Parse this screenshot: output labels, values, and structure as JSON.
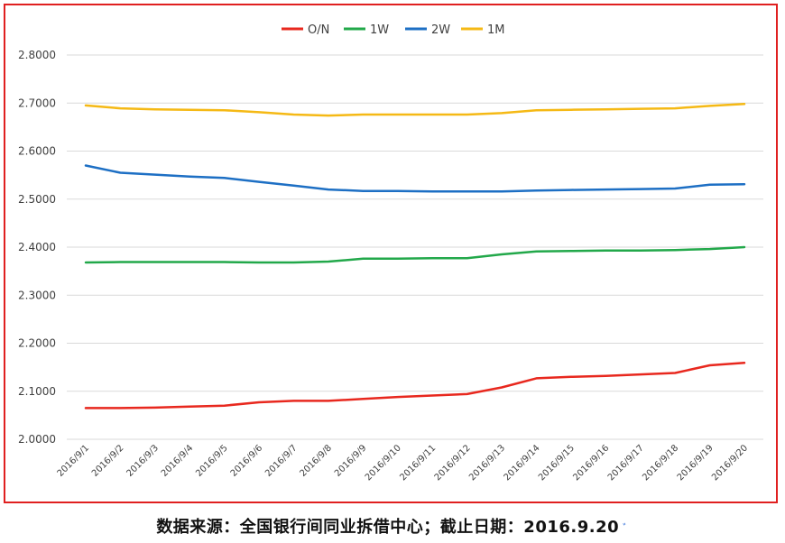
{
  "chart_data": {
    "type": "line",
    "title": "",
    "xlabel": "",
    "ylabel": "",
    "ylim": [
      2.0,
      2.8
    ],
    "yticks": [
      "2.0000",
      "2.1000",
      "2.2000",
      "2.3000",
      "2.4000",
      "2.5000",
      "2.6000",
      "2.7000",
      "2.8000"
    ],
    "grid": true,
    "legend_position": "top-center",
    "categories": [
      "2016/9/1",
      "2016/9/2",
      "2016/9/3",
      "2016/9/4",
      "2016/9/5",
      "2016/9/6",
      "2016/9/7",
      "2016/9/8",
      "2016/9/9",
      "2016/9/10",
      "2016/9/11",
      "2016/9/12",
      "2016/9/13",
      "2016/9/14",
      "2016/9/15",
      "2016/9/16",
      "2016/9/17",
      "2016/9/18",
      "2016/9/19",
      "2016/9/20"
    ],
    "series": [
      {
        "name": "O/N",
        "color": "#e8281e",
        "values": [
          2.065,
          2.065,
          2.066,
          2.068,
          2.07,
          2.077,
          2.08,
          2.08,
          2.084,
          2.088,
          2.091,
          2.094,
          2.108,
          2.127,
          2.13,
          2.132,
          2.135,
          2.138,
          2.154,
          2.159
        ]
      },
      {
        "name": "1W",
        "color": "#22a84a",
        "values": [
          2.368,
          2.369,
          2.369,
          2.369,
          2.369,
          2.368,
          2.368,
          2.37,
          2.376,
          2.376,
          2.377,
          2.377,
          2.385,
          2.391,
          2.392,
          2.393,
          2.393,
          2.394,
          2.396,
          2.4
        ]
      },
      {
        "name": "2W",
        "color": "#1d6fc4",
        "values": [
          2.57,
          2.555,
          2.551,
          2.547,
          2.544,
          2.536,
          2.528,
          2.52,
          2.517,
          2.517,
          2.516,
          2.516,
          2.516,
          2.518,
          2.519,
          2.52,
          2.521,
          2.522,
          2.53,
          2.531
        ]
      },
      {
        "name": "1M",
        "color": "#f5b915",
        "values": [
          2.695,
          2.689,
          2.687,
          2.686,
          2.685,
          2.681,
          2.676,
          2.674,
          2.676,
          2.676,
          2.676,
          2.676,
          2.679,
          2.685,
          2.686,
          2.687,
          2.688,
          2.689,
          2.694,
          2.698
        ]
      }
    ]
  },
  "caption": {
    "text": "数据来源：全国银行间同业拆借中心；截止日期：2016.9.20",
    "mark": "ﾞ"
  }
}
